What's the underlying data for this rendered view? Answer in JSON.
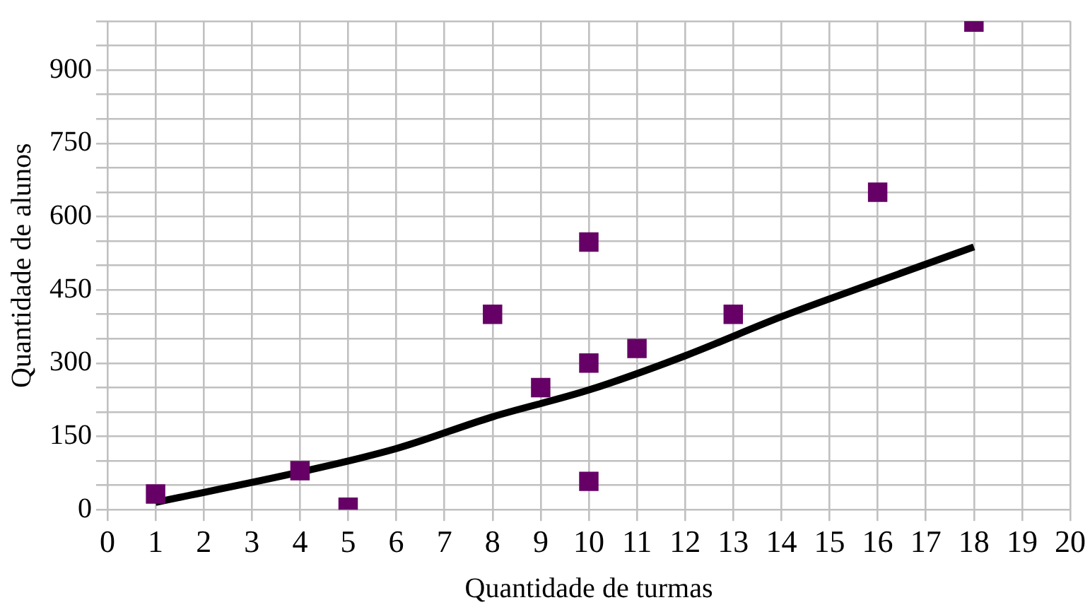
{
  "chart_data": {
    "type": "scatter",
    "xlabel": "Quantidade de turmas",
    "ylabel": "Quantidade de alunos",
    "xlim": [
      0,
      20
    ],
    "xticks": [
      0,
      1,
      2,
      3,
      4,
      5,
      6,
      7,
      8,
      9,
      10,
      11,
      12,
      13,
      14,
      15,
      16,
      17,
      18,
      19,
      20
    ],
    "ylim": [
      0,
      1000
    ],
    "yticks": [
      0,
      {
        "value": 50,
        "label": null
      },
      {
        "value": 100,
        "label": null
      },
      150,
      {
        "value": 200,
        "label": null
      },
      {
        "value": 250,
        "label": null
      },
      300,
      {
        "value": 350,
        "label": null
      },
      {
        "value": 400,
        "label": null
      },
      450,
      {
        "value": 500,
        "label": null
      },
      {
        "value": 550,
        "label": null
      },
      600,
      {
        "value": 650,
        "label": null
      },
      {
        "value": 700,
        "label": null
      },
      750,
      {
        "value": 800,
        "label": null
      },
      {
        "value": 850,
        "label": null
      },
      900,
      {
        "value": 950,
        "label": null
      },
      {
        "value": 1000,
        "label": null
      }
    ],
    "grid": true,
    "legend": false,
    "series": [
      {
        "type": "scatter",
        "color": "#660066",
        "marker": "square",
        "x": [
          1,
          4,
          5,
          8,
          9,
          10,
          10,
          10,
          11,
          13,
          16,
          18
        ],
        "values": [
          32,
          80,
          5,
          400,
          250,
          548,
          300,
          58,
          330,
          400,
          650,
          998
        ]
      },
      {
        "type": "line",
        "color": "#000000",
        "marker": "none",
        "line_style": "solid",
        "x": [
          1,
          4,
          6,
          8,
          10,
          12,
          14,
          16,
          18
        ],
        "values": [
          15,
          77,
          125,
          190,
          245,
          315,
          395,
          467,
          538
        ]
      }
    ]
  }
}
